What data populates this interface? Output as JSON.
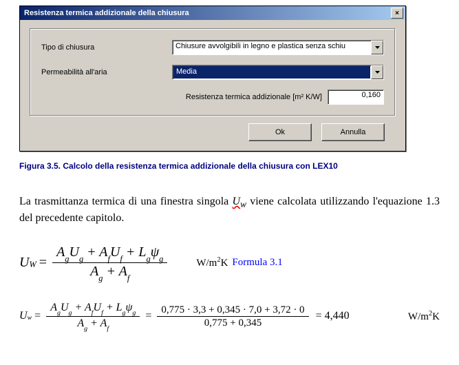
{
  "dialog": {
    "title": "Resistenza termica addizionale della chiusura",
    "close_glyph": "×",
    "labels": {
      "tipo": "Tipo di chiusura",
      "perm": "Permeabilità all'aria",
      "resist": "Resistenza termica addizionale [m² K/W]"
    },
    "combo_tipo": {
      "value": "Chiusure avvolgibili in legno e plastica senza schiu",
      "selected": false
    },
    "combo_perm": {
      "value": "Media",
      "selected": true
    },
    "resist_value": "0,160",
    "buttons": {
      "ok": "Ok",
      "cancel": "Annulla"
    }
  },
  "caption": "Figura 3.5. Calcolo della resistenza termica addizionale della chiusura con LEX10",
  "paragraph": {
    "pre": "La trasmittanza termica di una finestra singola ",
    "uw": "U",
    "uw_sub": "w",
    "post": " viene calcolata utilizzando l'equazione 1.3 del precedente capitolo."
  },
  "formula1": {
    "lhs_var": "U",
    "lhs_sub": "W",
    "num": "A<sub>g</sub>U<sub>g</sub> + A<sub>f</sub>U<sub>f</sub> + L<sub>g</sub>ψ<sub>g</sub>",
    "den": "A<sub>g</sub> + A<sub>f</sub>",
    "unit": "W/m<sup>2</sup>K",
    "ref": "Formula 3.1"
  },
  "formula2": {
    "lhs_var": "U",
    "lhs_sub": "w",
    "num1": "A<sub>g</sub>U<sub>g</sub> + A<sub>f</sub>U<sub>f</sub> + L<sub>g</sub>ψ<sub>g</sub>",
    "den1": "A<sub>g</sub> + A<sub>f</sub>",
    "num2": "0,775 · 3,3 + 0,345 · 7,0 + 3,72 · 0",
    "den2": "0,775 + 0,345",
    "result": "= 4,440",
    "unit": "W/m<sup>2</sup>K"
  }
}
